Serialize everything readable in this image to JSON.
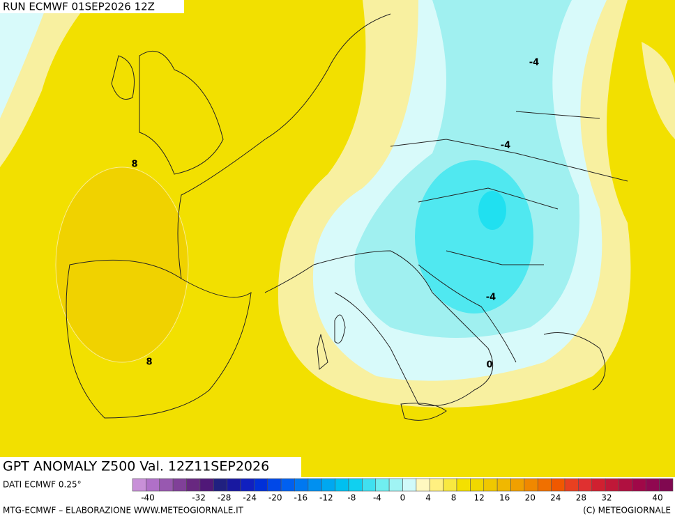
{
  "header": {
    "run": "RUN ECMWF 01SEP2026 12Z"
  },
  "map": {
    "title": "GPT ANOMALY Z500 Val. 12Z11SEP2026",
    "contour_labels": [
      "8",
      "8",
      "-4",
      "-4",
      "-4",
      "0"
    ]
  },
  "footer": {
    "source": "DATI ECMWF 0.25°",
    "credit": "MTG-ECMWF – ELABORAZIONE WWW.METEOGIORNALE.IT",
    "copyright": "(C) METEOGIORNALE"
  },
  "colorbar": {
    "ticks": [
      -40,
      -32,
      -28,
      -24,
      -20,
      -16,
      -12,
      -8,
      -4,
      0,
      4,
      8,
      12,
      16,
      20,
      24,
      28,
      32,
      40
    ],
    "colors": [
      "#c890d8",
      "#b070c8",
      "#9858b0",
      "#804098",
      "#682880",
      "#501878",
      "#202080",
      "#1818a0",
      "#1020c0",
      "#0030d8",
      "#0048e8",
      "#0060f0",
      "#0078f0",
      "#0090f0",
      "#00a8f0",
      "#00c0f0",
      "#10d0f0",
      "#40e0f0",
      "#70eef0",
      "#a0f4f4",
      "#d0fafa",
      "#fff8c0",
      "#fff080",
      "#f8e840",
      "#f4e000",
      "#f0d800",
      "#f0c800",
      "#f0b800",
      "#f0a000",
      "#f08800",
      "#f07000",
      "#f05800",
      "#e84020",
      "#e03030",
      "#d02030",
      "#c01838",
      "#b01040",
      "#a00848",
      "#900850",
      "#800850"
    ]
  }
}
